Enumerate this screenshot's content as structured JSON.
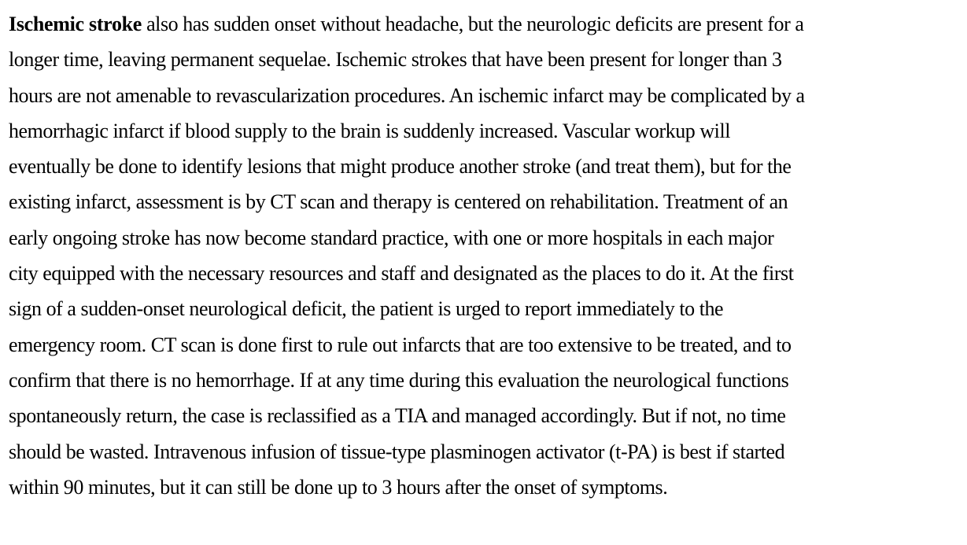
{
  "paragraph": {
    "term": "Ischemic stroke",
    "lines": [
      " also has sudden onset without headache, but the neurologic deficits are present for a",
      "longer time, leaving permanent sequelae. Ischemic strokes that have been present for longer than 3",
      "hours are not amenable to revascularization procedures. An ischemic infarct may be complicated by a",
      "hemorrhagic infarct if blood supply to the brain is suddenly increased. Vascular workup will",
      "eventually be done to identify lesions that might produce another stroke (and treat them), but for the",
      "existing infarct, assessment is by CT scan and therapy is centered on rehabilitation. Treatment of an",
      "early ongoing stroke has now become standard practice, with one or more hospitals in each major",
      "city equipped with the necessary resources and staff and designated as the places to do it. At the first",
      "sign of a sudden-onset neurological deficit, the patient is urged to report immediately to the",
      "emergency room. CT scan is done first to rule out infarcts that are too extensive to be treated, and to",
      "confirm that there is no hemorrhage. If at any time during this evaluation the neurological functions",
      "spontaneously return, the case is reclassified as a TIA and managed accordingly. But if not, no time",
      "should be wasted. Intravenous infusion of tissue-type plasminogen activator (t-PA) is best if started",
      "within 90 minutes, but it can still be done up to 3 hours after the onset of symptoms."
    ]
  }
}
